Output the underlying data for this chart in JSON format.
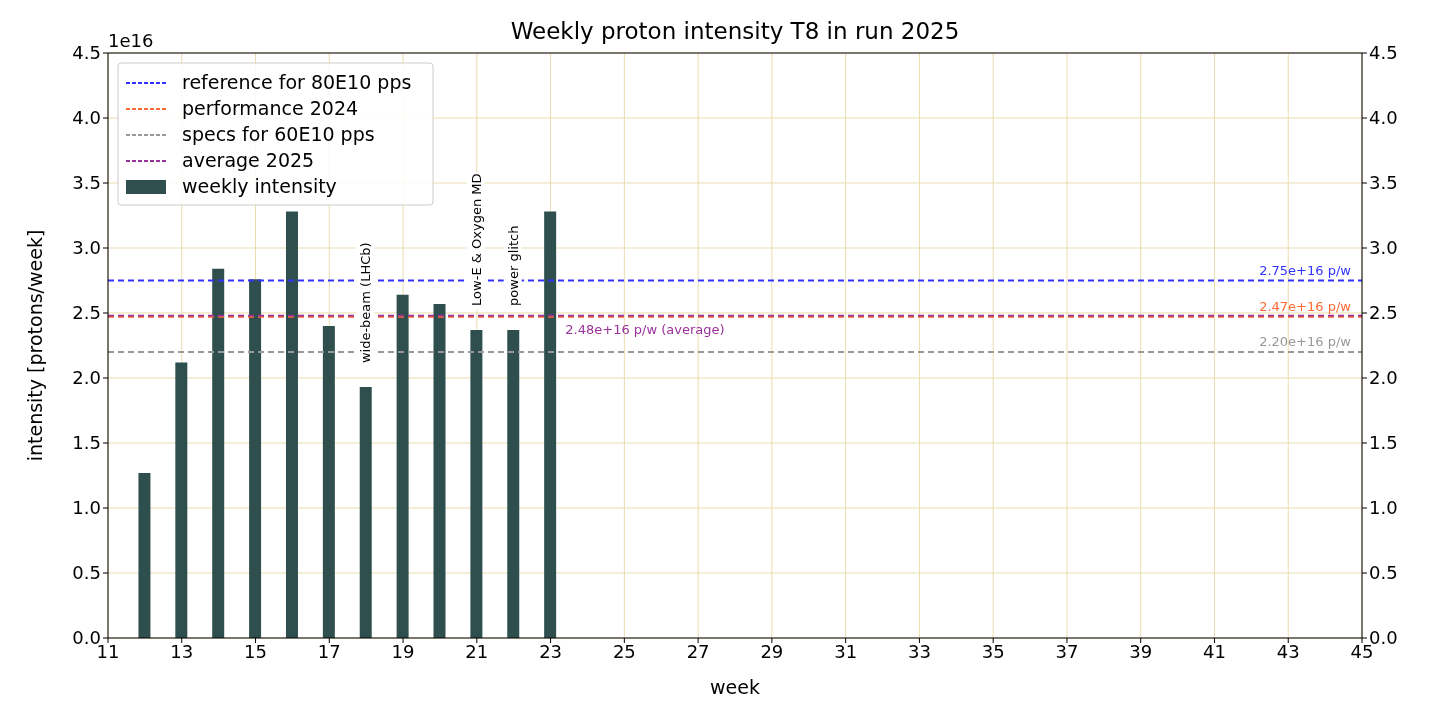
{
  "chart_data": {
    "type": "bar",
    "title": "Weekly proton intensity T8 in run 2025",
    "xlabel": "week",
    "ylabel": "intensity [protons/week]",
    "x": [
      12,
      13,
      14,
      15,
      16,
      17,
      18,
      19,
      20,
      21,
      22,
      23
    ],
    "series": [
      {
        "name": "weekly intensity",
        "color": "#2f4f4f",
        "values": [
          1.27,
          2.12,
          2.84,
          2.76,
          3.28,
          2.4,
          1.93,
          2.64,
          2.57,
          2.37,
          2.37,
          3.28
        ]
      }
    ],
    "ref_lines": [
      {
        "axis": "y",
        "value": 2.75,
        "label": "reference for 80E10 pps",
        "color": "#3333ff",
        "line_style": "dashed"
      },
      {
        "axis": "y",
        "value": 2.47,
        "label": "performance 2024",
        "color": "#ff6a33",
        "line_style": "dashed"
      },
      {
        "axis": "y",
        "value": 2.2,
        "label": "specs for 60E10 pps",
        "color": "#999999",
        "line_style": "dashed"
      },
      {
        "axis": "y",
        "value": 2.48,
        "label": "average 2025",
        "color": "#993399",
        "line_style": "dashed"
      }
    ],
    "annotations": [
      "1e16",
      {
        "text": "2.75e+16 p/w",
        "x": 44.7,
        "y": 2.75
      },
      {
        "text": "2.47e+16 p/w",
        "x": 44.7,
        "y": 2.47
      },
      {
        "text": "2.20e+16 p/w",
        "x": 44.7,
        "y": 2.2
      },
      {
        "text": "2.48e+16 p/w (average)",
        "x": 23.4,
        "y": 2.48
      },
      {
        "text": "wide-beam (LHCb)",
        "x": 18,
        "y": 1.93
      },
      {
        "text": "Low-E & Oxygen MD",
        "x": 21,
        "y": 2.37
      },
      {
        "text": "power glitch",
        "x": 22,
        "y": 2.37
      }
    ],
    "xlim": [
      11,
      45
    ],
    "xticks": [
      11,
      13,
      15,
      17,
      19,
      21,
      23,
      25,
      27,
      29,
      31,
      33,
      35,
      37,
      39,
      41,
      43,
      45
    ],
    "ylim": [
      0,
      4.5
    ],
    "yticks": [
      {
        "value": 0,
        "label": "0.0"
      },
      0.5,
      {
        "value": 1,
        "label": "1.0"
      },
      1.5,
      {
        "value": 2,
        "label": "2.0"
      },
      2.5,
      {
        "value": 3,
        "label": "3.0"
      },
      3.5,
      {
        "value": 4,
        "label": "4.0"
      },
      4.5
    ],
    "y2lim": [
      0,
      4.5
    ],
    "y2ticks": [
      {
        "value": 0,
        "label": "0.0"
      },
      0.5,
      {
        "value": 1,
        "label": "1.0"
      },
      1.5,
      {
        "value": 2,
        "label": "2.0"
      },
      2.5,
      {
        "value": 3,
        "label": "3.0"
      },
      3.5,
      {
        "value": 4,
        "label": "4.0"
      },
      4.5
    ],
    "grid": true,
    "legend": "top left"
  }
}
